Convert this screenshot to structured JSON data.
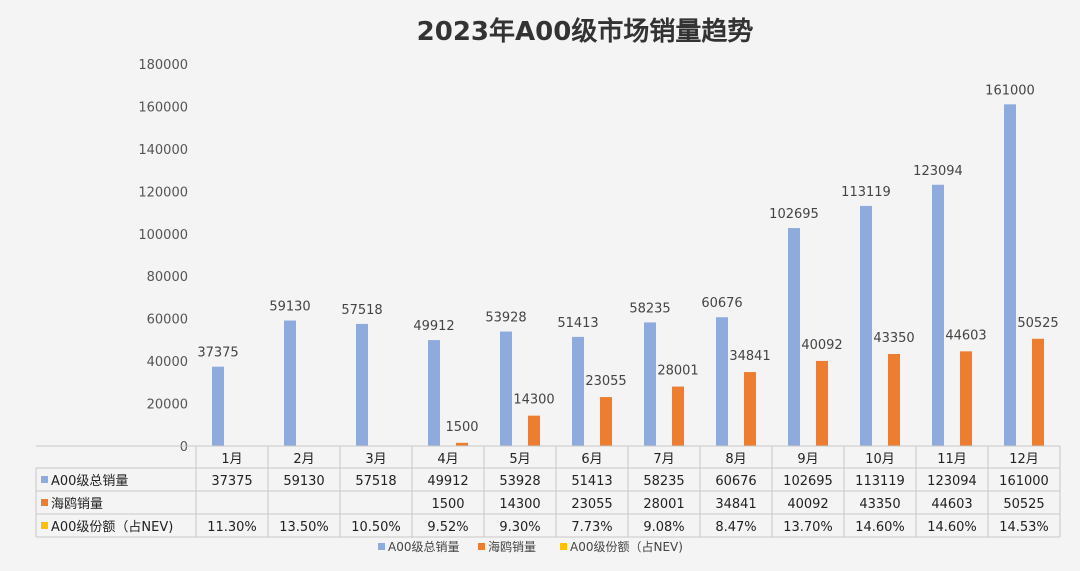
{
  "chart_data": {
    "type": "bar",
    "title": "2023年A00级市场销量趋势",
    "categories": [
      "1月",
      "2月",
      "3月",
      "4月",
      "5月",
      "6月",
      "7月",
      "8月",
      "9月",
      "10月",
      "11月",
      "12月"
    ],
    "ylim": [
      0,
      180000
    ],
    "yticks": [
      "0",
      "20000",
      "40000",
      "60000",
      "80000",
      "100000",
      "120000",
      "140000",
      "160000",
      "180000"
    ],
    "grid": false,
    "legend_position": "bottom",
    "series": [
      {
        "name": "A00级总销量",
        "color": "#8FAADC",
        "values": [
          37375,
          59130,
          57518,
          49912,
          53928,
          51413,
          58235,
          60676,
          102695,
          113119,
          123094,
          161000
        ],
        "data_labels": [
          "37375",
          "59130",
          "57518",
          "49912",
          "53928",
          "51413",
          "58235",
          "60676",
          "102695",
          "113119",
          "123094",
          "161000"
        ],
        "show_labels": true
      },
      {
        "name": "海鸥销量",
        "color": "#ED7D31",
        "values": [
          null,
          null,
          null,
          1500,
          14300,
          23055,
          28001,
          34841,
          40092,
          43350,
          44603,
          50525
        ],
        "data_labels": [
          "",
          "",
          "",
          "1500",
          "14300",
          "23055",
          "28001",
          "34841",
          "40092",
          "43350",
          "44603",
          "50525"
        ],
        "show_labels": true
      },
      {
        "name": "A00级份额（占NEV)",
        "color": "#FFC000",
        "values": [
          11.3,
          13.5,
          10.5,
          9.52,
          9.3,
          7.73,
          9.08,
          8.47,
          13.7,
          14.6,
          14.6,
          14.53
        ],
        "data_labels": [
          "11.30%",
          "13.50%",
          "10.50%",
          "9.52%",
          "9.30%",
          "7.73%",
          "9.08%",
          "8.47%",
          "13.70%",
          "14.60%",
          "14.60%",
          "14.53%"
        ],
        "show_labels": false
      }
    ]
  }
}
